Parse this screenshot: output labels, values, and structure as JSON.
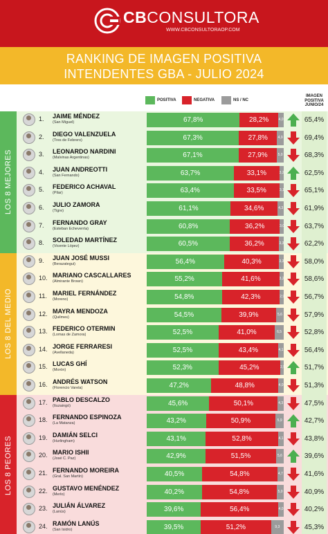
{
  "brand": {
    "name_bold": "CB",
    "name_light": "CONSULTORA",
    "website": "WWW.CBCONSULTORAOP.COM"
  },
  "title": {
    "line1": "RANKING DE IMAGEN POSITIVA",
    "line2": "INTENDENTES GBA - JULIO 2024"
  },
  "legend": {
    "positiva": "POSITIVA",
    "negativa": "NEGATIVA",
    "nsnc": "NS / NC"
  },
  "column_header": "IMAGEN POSITIVA JUNIO/24",
  "groups": [
    {
      "label": "LOS 8 MEJORES",
      "from": 0,
      "to": 7,
      "color": "#5cb85c",
      "bg": "#eaf6df"
    },
    {
      "label": "LOS 8 DEL MEDIO",
      "from": 8,
      "to": 15,
      "color": "#f3b829",
      "bg": "#fdf7dc"
    },
    {
      "label": "LOS 8 PEORES",
      "from": 16,
      "to": 23,
      "color": "#d8232a",
      "bg": "#f9dcdc"
    }
  ],
  "colors": {
    "positive": "#5cb85c",
    "negative": "#d8232a",
    "nsnc": "#9b9b9b",
    "arrow_up": "#4caf50",
    "arrow_down": "#d8232a",
    "prev_bg": "#dff0d0"
  },
  "chart_data": {
    "type": "bar",
    "stacked": true,
    "title": "RANKING DE IMAGEN POSITIVA INTENDENTES GBA - JULIO 2024",
    "series_names": [
      "POSITIVA",
      "NEGATIVA",
      "NS / NC"
    ],
    "rows": [
      {
        "rank": "1.",
        "name": "JAIME MÉNDEZ",
        "municipio": "(San Miguel)",
        "pos": 67.8,
        "pos_label": "67,8%",
        "neg": 28.2,
        "neg_label": "28,2%",
        "ns": 4.0,
        "ns_label": "4,0",
        "trend": "up",
        "prev": "65,4%"
      },
      {
        "rank": "2.",
        "name": "DIEGO VALENZUELA",
        "municipio": "(Tres de Febrero)",
        "pos": 67.3,
        "pos_label": "67,3%",
        "neg": 27.8,
        "neg_label": "27,8%",
        "ns": 4.9,
        "ns_label": "4,9",
        "trend": "down",
        "prev": "69,4%"
      },
      {
        "rank": "3.",
        "name": "LEONARDO NARDINI",
        "municipio": "(Malvinas Argentinas)",
        "pos": 67.1,
        "pos_label": "67,1%",
        "neg": 27.9,
        "neg_label": "27,9%",
        "ns": 5.0,
        "ns_label": "5,0",
        "trend": "down",
        "prev": "68,3%"
      },
      {
        "rank": "4.",
        "name": "JUAN ANDREOTTI",
        "municipio": "(San Fernando)",
        "pos": 63.7,
        "pos_label": "63,7%",
        "neg": 33.1,
        "neg_label": "33,1%",
        "ns": 3.2,
        "ns_label": "3,2",
        "trend": "up",
        "prev": "62,5%"
      },
      {
        "rank": "5.",
        "name": "FEDERICO ACHAVAL",
        "municipio": "(Pilar)",
        "pos": 63.4,
        "pos_label": "63,4%",
        "neg": 33.5,
        "neg_label": "33,5%",
        "ns": 3.1,
        "ns_label": "3,1",
        "trend": "down",
        "prev": "65,1%"
      },
      {
        "rank": "6.",
        "name": "JULIO ZAMORA",
        "municipio": "(Tigre)",
        "pos": 61.1,
        "pos_label": "61,1%",
        "neg": 34.6,
        "neg_label": "34,6%",
        "ns": 4.3,
        "ns_label": "4,3",
        "trend": "down",
        "prev": "61,9%"
      },
      {
        "rank": "7.",
        "name": "FERNANDO GRAY",
        "municipio": "(Esteban Echeverría)",
        "pos": 60.8,
        "pos_label": "60,8%",
        "neg": 36.2,
        "neg_label": "36,2%",
        "ns": 3.0,
        "ns_label": "3,0",
        "trend": "down",
        "prev": "63,7%"
      },
      {
        "rank": "8.",
        "name": "SOLEDAD MARTÍNEZ",
        "municipio": "(Vicente López)",
        "pos": 60.5,
        "pos_label": "60,5%",
        "neg": 36.2,
        "neg_label": "36,2%",
        "ns": 3.3,
        "ns_label": "3,3",
        "trend": "down",
        "prev": "62,2%"
      },
      {
        "rank": "9.",
        "name": "JUAN JOSÉ MUSSI",
        "municipio": "(Berazategui)",
        "pos": 56.4,
        "pos_label": "56,4%",
        "neg": 40.3,
        "neg_label": "40,3%",
        "ns": 3.3,
        "ns_label": "3,3",
        "trend": "down",
        "prev": "58,0%"
      },
      {
        "rank": "10.",
        "name": "MARIANO CASCALLARES",
        "municipio": "(Almirante Brown)",
        "pos": 55.2,
        "pos_label": "55,2%",
        "neg": 41.6,
        "neg_label": "41,6%",
        "ns": 3.2,
        "ns_label": "3,2",
        "trend": "down",
        "prev": "58,6%"
      },
      {
        "rank": "11.",
        "name": "MARIEL FERNÁNDEZ",
        "municipio": "(Moreno)",
        "pos": 54.8,
        "pos_label": "54,8%",
        "neg": 42.3,
        "neg_label": "42,3%",
        "ns": 2.9,
        "ns_label": "2,9",
        "trend": "down",
        "prev": "56,7%"
      },
      {
        "rank": "12.",
        "name": "MAYRA MENDOZA",
        "municipio": "(Quilmes)",
        "pos": 54.5,
        "pos_label": "54,5%",
        "neg": 39.9,
        "neg_label": "39,9%",
        "ns": 5.6,
        "ns_label": "5,6",
        "trend": "down",
        "prev": "57,9%"
      },
      {
        "rank": "13.",
        "name": "FEDERICO OTERMIN",
        "municipio": "(Lomas de Zamora)",
        "pos": 52.5,
        "pos_label": "52,5%",
        "neg": 41.0,
        "neg_label": "41,0%",
        "ns": 6.5,
        "ns_label": "6,5",
        "trend": "down",
        "prev": "52,8%"
      },
      {
        "rank": "14.",
        "name": "JORGE FERRARESI",
        "municipio": "(Avellaneda)",
        "pos": 52.5,
        "pos_label": "52,5%",
        "neg": 43.4,
        "neg_label": "43,4%",
        "ns": 4.1,
        "ns_label": "4,1",
        "trend": "down",
        "prev": "56,4%"
      },
      {
        "rank": "15.",
        "name": "LUCAS GHÍ",
        "municipio": "(Morón)",
        "pos": 52.3,
        "pos_label": "52,3%",
        "neg": 45.2,
        "neg_label": "45,2%",
        "ns": 2.5,
        "ns_label": "2,5",
        "trend": "up",
        "prev": "51,7%"
      },
      {
        "rank": "16.",
        "name": "ANDRÉS WATSON",
        "municipio": "(Florencio Varela)",
        "pos": 47.2,
        "pos_label": "47,2%",
        "neg": 48.8,
        "neg_label": "48,8%",
        "ns": 4.0,
        "ns_label": "4,0",
        "trend": "down",
        "prev": "51,3%"
      },
      {
        "rank": "17.",
        "name": "PABLO DESCALZO",
        "municipio": "(Ituzaingó)",
        "pos": 45.6,
        "pos_label": "45,6%",
        "neg": 50.1,
        "neg_label": "50,1%",
        "ns": 4.3,
        "ns_label": "4,3",
        "trend": "down",
        "prev": "47,5%"
      },
      {
        "rank": "18.",
        "name": "FERNANDO ESPINOZA",
        "municipio": "(La Matanza)",
        "pos": 43.2,
        "pos_label": "43,2%",
        "neg": 50.9,
        "neg_label": "50,9%",
        "ns": 5.9,
        "ns_label": "5,9",
        "trend": "up",
        "prev": "42,7%"
      },
      {
        "rank": "19.",
        "name": "DAMIÁN SELCI",
        "municipio": "(Hurlingham)",
        "pos": 43.1,
        "pos_label": "43,1%",
        "neg": 52.8,
        "neg_label": "52,8%",
        "ns": 4.1,
        "ns_label": "4,1",
        "trend": "down",
        "prev": "43,8%"
      },
      {
        "rank": "20.",
        "name": "MARIO ISHII",
        "municipio": "(José C. Paz)",
        "pos": 42.9,
        "pos_label": "42,9%",
        "neg": 51.5,
        "neg_label": "51,5%",
        "ns": 5.6,
        "ns_label": "5,6",
        "trend": "up",
        "prev": "39,6%"
      },
      {
        "rank": "21.",
        "name": "FERNANDO MOREIRA",
        "municipio": "(Gral. San Martín)",
        "pos": 40.5,
        "pos_label": "40,5%",
        "neg": 54.8,
        "neg_label": "54,8%",
        "ns": 4.7,
        "ns_label": "4,7",
        "trend": "down",
        "prev": "41,6%"
      },
      {
        "rank": "22.",
        "name": "GUSTAVO MENÉNDEZ",
        "municipio": "(Merlo)",
        "pos": 40.2,
        "pos_label": "40,2%",
        "neg": 54.8,
        "neg_label": "54,8%",
        "ns": 5.0,
        "ns_label": "5,0",
        "trend": "down",
        "prev": "40,9%"
      },
      {
        "rank": "23.",
        "name": "JULIÁN ÁLVAREZ",
        "municipio": "(Lanús)",
        "pos": 39.6,
        "pos_label": "39,6%",
        "neg": 56.4,
        "neg_label": "56,4%",
        "ns": 4.0,
        "ns_label": "4,0",
        "trend": "down",
        "prev": "40,2%"
      },
      {
        "rank": "24.",
        "name": "RAMÓN LANÚS",
        "municipio": "(San Isidro)",
        "pos": 39.5,
        "pos_label": "39,5%",
        "neg": 51.2,
        "neg_label": "51,2%",
        "ns": 9.3,
        "ns_label": "9,3",
        "trend": "down",
        "prev": "45,3%"
      }
    ]
  }
}
